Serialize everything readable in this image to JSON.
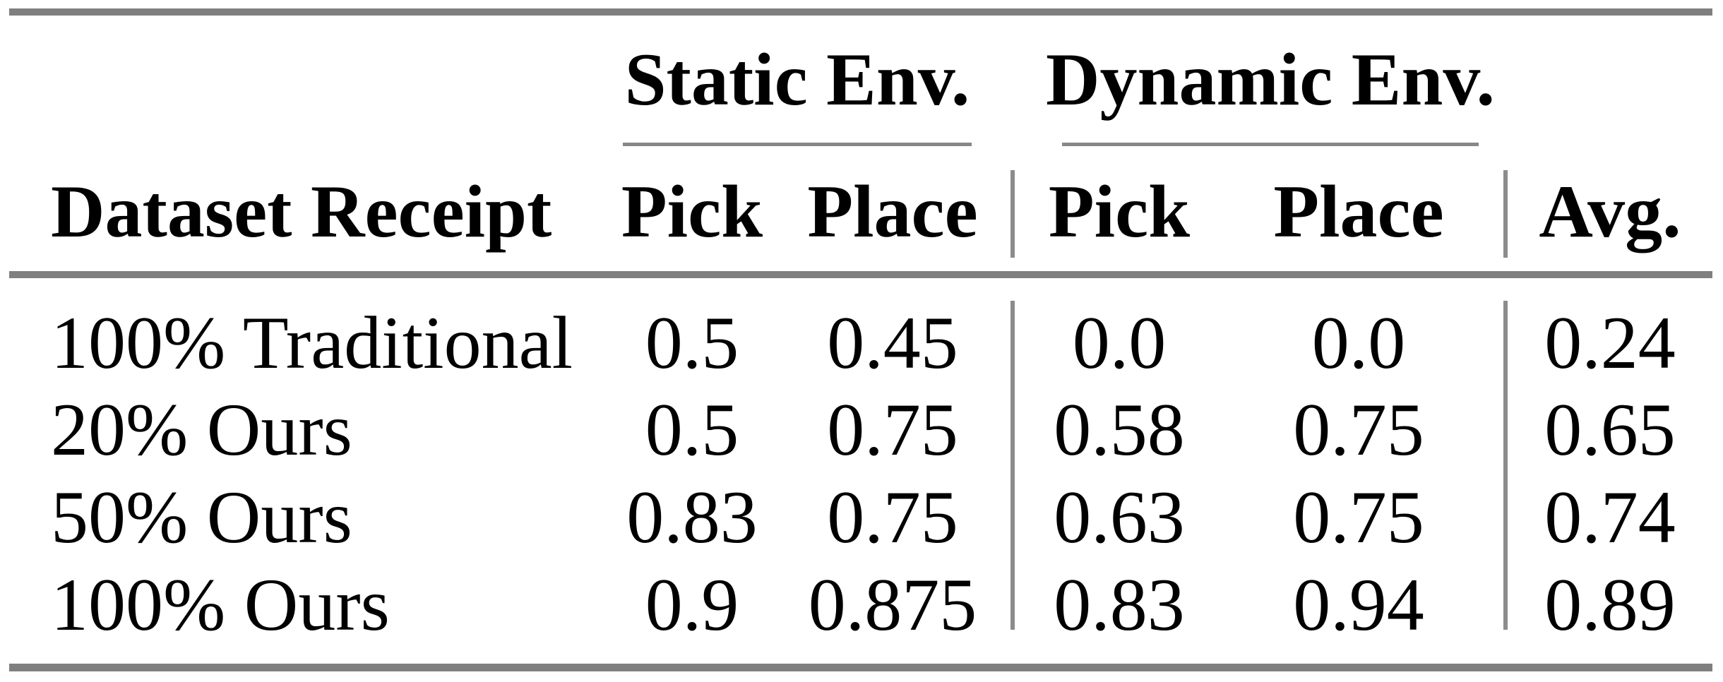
{
  "table": {
    "column_groups": {
      "static": "Static Env.",
      "dynamic": "Dynamic Env."
    },
    "headers": {
      "dataset": "Dataset Receipt",
      "static_pick": "Pick",
      "static_place": "Place",
      "dynamic_pick": "Pick",
      "dynamic_place": "Place",
      "avg": "Avg."
    },
    "rows": [
      {
        "label": "100% Traditional",
        "static_pick": "0.5",
        "static_place": "0.45",
        "dynamic_pick": "0.0",
        "dynamic_place": "0.0",
        "avg": "0.24"
      },
      {
        "label": "20% Ours",
        "static_pick": "0.5",
        "static_place": "0.75",
        "dynamic_pick": "0.58",
        "dynamic_place": "0.75",
        "avg": "0.65"
      },
      {
        "label": "50% Ours",
        "static_pick": "0.83",
        "static_place": "0.75",
        "dynamic_pick": "0.63",
        "dynamic_place": "0.75",
        "avg": "0.74"
      },
      {
        "label": "100% Ours",
        "static_pick": "0.9",
        "static_place": "0.875",
        "dynamic_pick": "0.83",
        "dynamic_place": "0.94",
        "avg": "0.89"
      }
    ]
  },
  "chart_data": {
    "type": "table",
    "title": "",
    "column_groups": [
      "Static Env.",
      "Dynamic Env."
    ],
    "columns": [
      "Dataset Receipt",
      "Static Pick",
      "Static Place",
      "Dynamic Pick",
      "Dynamic Place",
      "Avg."
    ],
    "rows": [
      [
        "100% Traditional",
        0.5,
        0.45,
        0.0,
        0.0,
        0.24
      ],
      [
        "20% Ours",
        0.5,
        0.75,
        0.58,
        0.75,
        0.65
      ],
      [
        "50% Ours",
        0.83,
        0.75,
        0.63,
        0.75,
        0.74
      ],
      [
        "100% Ours",
        0.9,
        0.875,
        0.83,
        0.94,
        0.89
      ]
    ]
  },
  "colors": {
    "rule_thick": "#7f7f7f",
    "rule_thin": "#8c8c8c",
    "text": "#000000",
    "background": "#ffffff"
  }
}
